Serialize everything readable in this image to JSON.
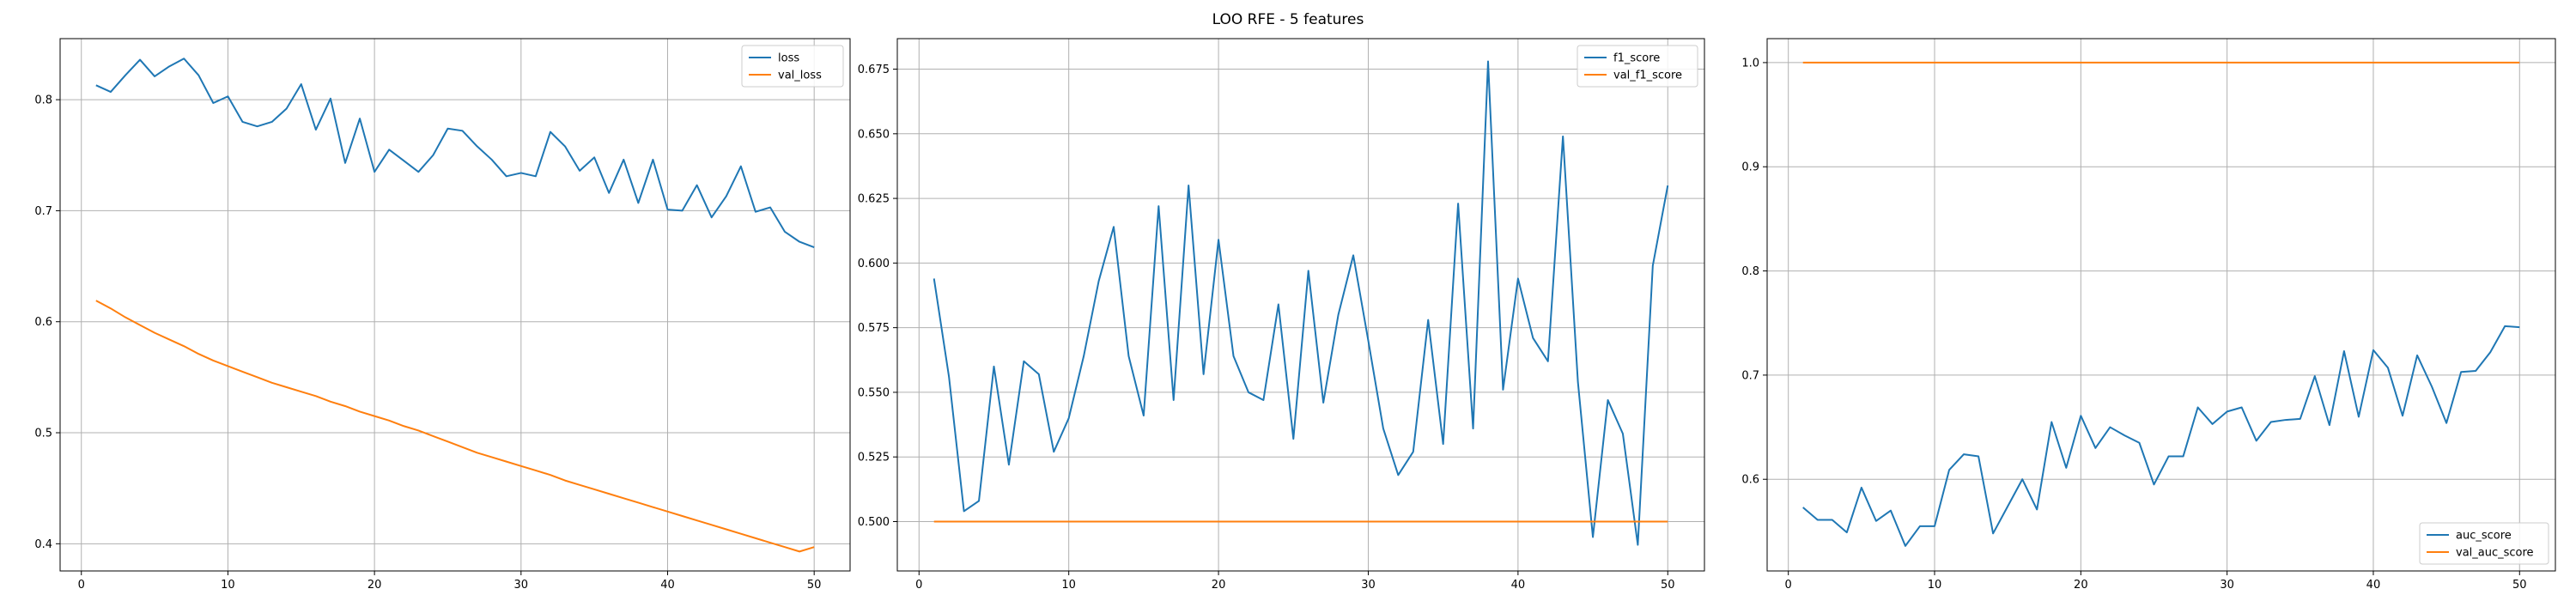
{
  "figure": {
    "suptitle": "LOO RFE - 5 features"
  },
  "colors": {
    "series1": "#1f77b4",
    "series2": "#ff7f0e",
    "grid": "#b0b0b0",
    "axes": "#000000"
  },
  "chart_data": [
    {
      "type": "line",
      "title": "",
      "xlabel": "",
      "ylabel": "",
      "grid": true,
      "legend": "top-right",
      "xlim": [
        -1.45,
        52.45
      ],
      "ylim": [
        0.3755,
        0.855
      ],
      "xticks": [
        0,
        10,
        20,
        30,
        40,
        50
      ],
      "yticks": [
        0.4,
        0.5,
        0.6,
        0.7,
        0.8
      ],
      "ytick_labels": [
        "0.4",
        "0.5",
        "0.6",
        "0.7",
        "0.8"
      ],
      "x": [
        1,
        2,
        3,
        4,
        5,
        6,
        7,
        8,
        9,
        10,
        11,
        12,
        13,
        14,
        15,
        16,
        17,
        18,
        19,
        20,
        21,
        22,
        23,
        24,
        25,
        26,
        27,
        28,
        29,
        30,
        31,
        32,
        33,
        34,
        35,
        36,
        37,
        38,
        39,
        40,
        41,
        42,
        43,
        44,
        45,
        46,
        47,
        48,
        49,
        50
      ],
      "series": [
        {
          "name": "loss",
          "values": [
            0.813,
            0.807,
            0.822,
            0.836,
            0.821,
            0.83,
            0.837,
            0.822,
            0.797,
            0.803,
            0.78,
            0.776,
            0.78,
            0.792,
            0.814,
            0.773,
            0.801,
            0.743,
            0.783,
            0.735,
            0.755,
            0.745,
            0.735,
            0.75,
            0.774,
            0.772,
            0.758,
            0.746,
            0.731,
            0.734,
            0.731,
            0.771,
            0.758,
            0.736,
            0.748,
            0.716,
            0.746,
            0.707,
            0.746,
            0.701,
            0.7,
            0.723,
            0.694,
            0.713,
            0.74,
            0.699,
            0.703,
            0.681,
            0.672,
            0.667
          ]
        },
        {
          "name": "val_loss",
          "values": [
            0.619,
            0.612,
            0.604,
            0.597,
            0.59,
            0.584,
            0.578,
            0.571,
            0.565,
            0.56,
            0.555,
            0.55,
            0.545,
            0.541,
            0.537,
            0.533,
            0.528,
            0.524,
            0.519,
            0.515,
            0.511,
            0.506,
            0.502,
            0.497,
            0.492,
            0.487,
            0.482,
            0.478,
            0.474,
            0.47,
            0.466,
            0.462,
            0.457,
            0.453,
            0.449,
            0.445,
            0.441,
            0.437,
            0.433,
            0.429,
            0.425,
            0.421,
            0.417,
            0.413,
            0.409,
            0.405,
            0.401,
            0.397,
            0.393,
            0.397
          ]
        }
      ]
    },
    {
      "type": "line",
      "title": "",
      "xlabel": "",
      "ylabel": "",
      "grid": true,
      "legend": "top-right",
      "xlim": [
        -1.45,
        52.45
      ],
      "ylim": [
        0.4809,
        0.6868
      ],
      "xticks": [
        0,
        10,
        20,
        30,
        40,
        50
      ],
      "yticks": [
        0.5,
        0.525,
        0.55,
        0.575,
        0.6,
        0.625,
        0.65,
        0.675
      ],
      "ytick_labels": [
        "0.500",
        "0.525",
        "0.550",
        "0.575",
        "0.600",
        "0.625",
        "0.650",
        "0.675"
      ],
      "x": [
        1,
        2,
        3,
        4,
        5,
        6,
        7,
        8,
        9,
        10,
        11,
        12,
        13,
        14,
        15,
        16,
        17,
        18,
        19,
        20,
        21,
        22,
        23,
        24,
        25,
        26,
        27,
        28,
        29,
        30,
        31,
        32,
        33,
        34,
        35,
        36,
        37,
        38,
        39,
        40,
        41,
        42,
        43,
        44,
        45,
        46,
        47,
        48,
        49,
        50
      ],
      "series": [
        {
          "name": "f1_score",
          "values": [
            0.594,
            0.556,
            0.504,
            0.508,
            0.56,
            0.522,
            0.562,
            0.557,
            0.527,
            0.54,
            0.564,
            0.593,
            0.614,
            0.564,
            0.541,
            0.622,
            0.547,
            0.63,
            0.557,
            0.609,
            0.564,
            0.55,
            0.547,
            0.584,
            0.532,
            0.597,
            0.546,
            0.58,
            0.603,
            0.57,
            0.536,
            0.518,
            0.527,
            0.578,
            0.53,
            0.623,
            0.536,
            0.678,
            0.551,
            0.594,
            0.571,
            0.562,
            0.649,
            0.554,
            0.494,
            0.547,
            0.534,
            0.491,
            0.599,
            0.63
          ]
        },
        {
          "name": "val_f1_score",
          "values": [
            0.5,
            0.5,
            0.5,
            0.5,
            0.5,
            0.5,
            0.5,
            0.5,
            0.5,
            0.5,
            0.5,
            0.5,
            0.5,
            0.5,
            0.5,
            0.5,
            0.5,
            0.5,
            0.5,
            0.5,
            0.5,
            0.5,
            0.5,
            0.5,
            0.5,
            0.5,
            0.5,
            0.5,
            0.5,
            0.5,
            0.5,
            0.5,
            0.5,
            0.5,
            0.5,
            0.5,
            0.5,
            0.5,
            0.5,
            0.5,
            0.5,
            0.5,
            0.5,
            0.5,
            0.5,
            0.5,
            0.5,
            0.5,
            0.5,
            0.5
          ]
        }
      ]
    },
    {
      "type": "line",
      "title": "",
      "xlabel": "",
      "ylabel": "",
      "grid": true,
      "legend": "bottom-right",
      "xlim": [
        -1.45,
        52.45
      ],
      "ylim": [
        0.512,
        1.023
      ],
      "xticks": [
        0,
        10,
        20,
        30,
        40,
        50
      ],
      "yticks": [
        0.6,
        0.7,
        0.8,
        0.9,
        1.0
      ],
      "ytick_labels": [
        "0.6",
        "0.7",
        "0.8",
        "0.9",
        "1.0"
      ],
      "x": [
        1,
        2,
        3,
        4,
        5,
        6,
        7,
        8,
        9,
        10,
        11,
        12,
        13,
        14,
        15,
        16,
        17,
        18,
        19,
        20,
        21,
        22,
        23,
        24,
        25,
        26,
        27,
        28,
        29,
        30,
        31,
        32,
        33,
        34,
        35,
        36,
        37,
        38,
        39,
        40,
        41,
        42,
        43,
        44,
        45,
        46,
        47,
        48,
        49,
        50
      ],
      "series": [
        {
          "name": "auc_score",
          "values": [
            0.573,
            0.561,
            0.561,
            0.549,
            0.592,
            0.56,
            0.57,
            0.536,
            0.555,
            0.555,
            0.609,
            0.624,
            0.622,
            0.548,
            0.574,
            0.6,
            0.571,
            0.655,
            0.611,
            0.661,
            0.63,
            0.65,
            0.642,
            0.635,
            0.595,
            0.622,
            0.622,
            0.669,
            0.653,
            0.665,
            0.669,
            0.637,
            0.655,
            0.657,
            0.658,
            0.699,
            0.652,
            0.723,
            0.66,
            0.724,
            0.707,
            0.661,
            0.719,
            0.689,
            0.654,
            0.703,
            0.704,
            0.722,
            0.747,
            0.746
          ]
        },
        {
          "name": "val_auc_score",
          "values": [
            1.0,
            1.0,
            1.0,
            1.0,
            1.0,
            1.0,
            1.0,
            1.0,
            1.0,
            1.0,
            1.0,
            1.0,
            1.0,
            1.0,
            1.0,
            1.0,
            1.0,
            1.0,
            1.0,
            1.0,
            1.0,
            1.0,
            1.0,
            1.0,
            1.0,
            1.0,
            1.0,
            1.0,
            1.0,
            1.0,
            1.0,
            1.0,
            1.0,
            1.0,
            1.0,
            1.0,
            1.0,
            1.0,
            1.0,
            1.0,
            1.0,
            1.0,
            1.0,
            1.0,
            1.0,
            1.0,
            1.0,
            1.0,
            1.0,
            1.0
          ]
        }
      ]
    }
  ]
}
